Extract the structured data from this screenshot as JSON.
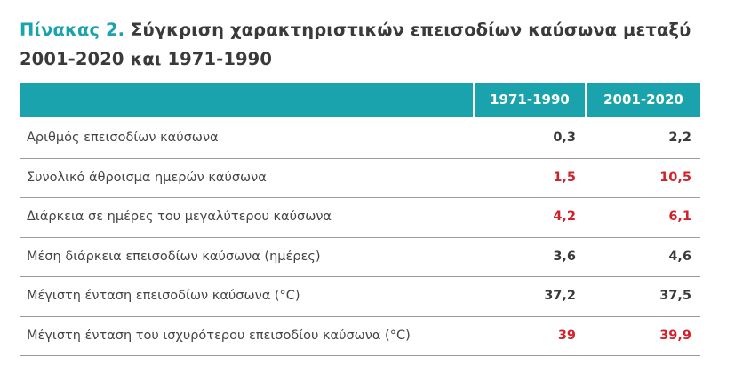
{
  "title": {
    "label": "Πίνακας 2.",
    "text": "Σύγκριση χαρακτηριστικών επεισοδίων καύσωνα μεταξύ 2001-2020 και 1971-1990"
  },
  "table": {
    "columns": [
      "1971-1990",
      "2001-2020"
    ],
    "rows": [
      {
        "label": "Αριθμός επεισοδίων καύσωνα",
        "v1": "0,3",
        "v2": "2,2",
        "highlight": false
      },
      {
        "label": "Συνολικό άθροισμα ημερών καύσωνα",
        "v1": "1,5",
        "v2": "10,5",
        "highlight": true
      },
      {
        "label": "Διάρκεια σε ημέρες του μεγαλύτερου καύσωνα",
        "v1": "4,2",
        "v2": "6,1",
        "highlight": true
      },
      {
        "label": "Μέση διάρκεια επεισοδίων καύσωνα (ημέρες)",
        "v1": "3,6",
        "v2": "4,6",
        "highlight": false
      },
      {
        "label": "Μέγιστη ένταση επεισοδίων καύσωνα (°C)",
        "v1": "37,2",
        "v2": "37,5",
        "highlight": false
      },
      {
        "label": "Μέγιστη ένταση του ισχυρότερου επεισοδίου καύσωνα (°C)",
        "v1": "39",
        "v2": "39,9",
        "highlight": true
      }
    ]
  },
  "colors": {
    "accent": "#1aa3ad",
    "highlight": "#d0222b",
    "text": "#3a3a3a"
  }
}
